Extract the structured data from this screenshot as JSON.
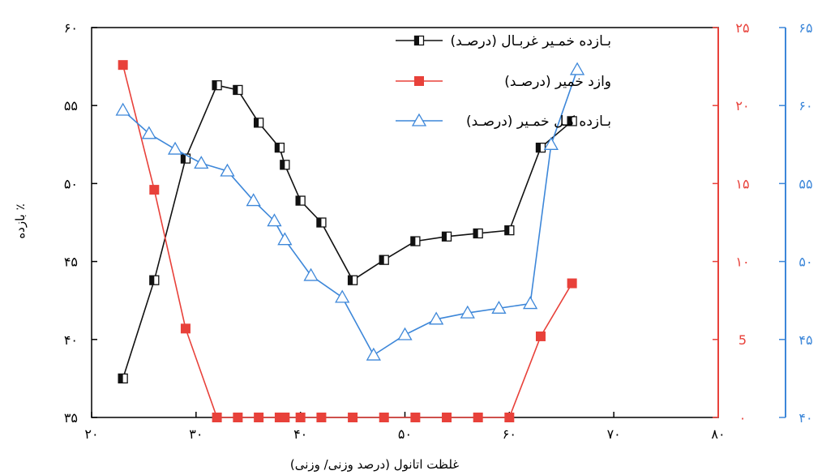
{
  "chart_data": {
    "type": "line",
    "title": "",
    "xlabel": "غلظت اتانول (درصد وزنی/ وزنی)",
    "ylabel": "بازده ٪",
    "xlim": [
      20,
      80
    ],
    "x_ticks": [
      20,
      30,
      40,
      50,
      60,
      70,
      80
    ],
    "x_tick_labels": [
      "۲۰",
      "۳۰",
      "۴۰",
      "۵۰",
      "۶۰",
      "۷۰",
      "۸۰"
    ],
    "axes": [
      {
        "id": "left",
        "ylim": [
          35,
          60
        ],
        "ticks": [
          35,
          40,
          45,
          50,
          55,
          60
        ],
        "tick_labels": [
          "۳۵",
          "۴۰",
          "۴۵",
          "۵۰",
          "۵۵",
          "۶۰"
        ],
        "color": "#000000"
      },
      {
        "id": "right-red",
        "ylim": [
          0,
          25
        ],
        "ticks": [
          0,
          5,
          10,
          15,
          20,
          25
        ],
        "tick_labels": [
          "۰",
          "5",
          "۱۰",
          "۱۵",
          "۲۰",
          "۲۵"
        ],
        "color": "#e8413a"
      },
      {
        "id": "right-blue",
        "ylim": [
          40,
          65
        ],
        "ticks": [
          40,
          45,
          50,
          55,
          60,
          65
        ],
        "tick_labels": [
          "۴۰",
          "۴۵",
          "۵۰",
          "۵۵",
          "۶۰",
          "۶۵"
        ],
        "color": "#3d87d9"
      }
    ],
    "series": [
      {
        "name": "بـازده خمـیر غربـال (درصـد)",
        "axis": "left",
        "color": "#111111",
        "marker": "half-square",
        "points": [
          [
            23,
            37.5
          ],
          [
            26,
            43.8
          ],
          [
            29,
            51.6
          ],
          [
            32,
            56.3
          ],
          [
            34,
            56.0
          ],
          [
            36,
            53.9
          ],
          [
            38,
            52.3
          ],
          [
            38.5,
            51.2
          ],
          [
            40,
            48.9
          ],
          [
            42,
            47.5
          ],
          [
            45,
            43.8
          ],
          [
            48,
            45.1
          ],
          [
            51,
            46.3
          ],
          [
            54,
            46.6
          ],
          [
            57,
            46.8
          ],
          [
            60,
            47.0
          ],
          [
            63,
            52.3
          ],
          [
            66,
            54.0
          ]
        ]
      },
      {
        "name": "وازد خمیر (درصـد)",
        "axis": "right-red",
        "color": "#e8413a",
        "marker": "square",
        "points": [
          [
            23,
            22.6
          ],
          [
            26,
            14.6
          ],
          [
            29,
            5.7
          ],
          [
            32,
            0
          ],
          [
            34,
            0
          ],
          [
            36,
            0
          ],
          [
            38,
            0
          ],
          [
            38.5,
            0
          ],
          [
            40,
            0
          ],
          [
            42,
            0
          ],
          [
            45,
            0
          ],
          [
            48,
            0
          ],
          [
            51,
            0
          ],
          [
            54,
            0
          ],
          [
            57,
            0
          ],
          [
            60,
            0
          ],
          [
            63,
            5.2
          ],
          [
            66,
            8.6
          ]
        ]
      },
      {
        "name": "بـازده کـل خمـیر (درصـد)",
        "axis": "right-blue",
        "color": "#3d87d9",
        "marker": "triangle",
        "points": [
          [
            23,
            59.7
          ],
          [
            25.5,
            58.2
          ],
          [
            28,
            57.2
          ],
          [
            30.5,
            56.3
          ],
          [
            33,
            55.8
          ],
          [
            35.5,
            53.9
          ],
          [
            37.5,
            52.6
          ],
          [
            38.5,
            51.4
          ],
          [
            41,
            49.1
          ],
          [
            44,
            47.7
          ],
          [
            47,
            44.0
          ],
          [
            50,
            45.3
          ],
          [
            53,
            46.3
          ],
          [
            56,
            46.7
          ],
          [
            59,
            47.0
          ],
          [
            62,
            47.3
          ],
          [
            64,
            57.5
          ],
          [
            66.5,
            62.3
          ]
        ]
      }
    ],
    "legend": {
      "placement": "top-center",
      "entries": [
        "بـازده خمـیر غربـال (درصـد)",
        "وازد خمیر (درصـد)",
        "بـازده کـل خمـیر (درصـد)"
      ]
    },
    "grid": false
  }
}
